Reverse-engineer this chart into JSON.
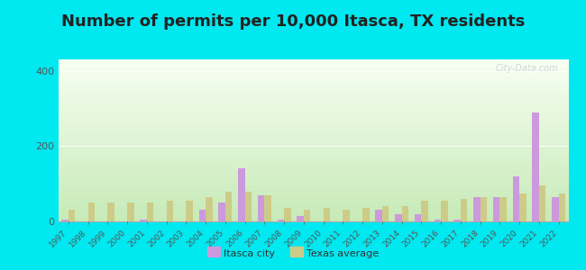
{
  "title": "Number of permits per 10,000 Itasca, TX residents",
  "years": [
    1997,
    1998,
    1999,
    2000,
    2001,
    2002,
    2003,
    2004,
    2005,
    2006,
    2007,
    2008,
    2009,
    2010,
    2011,
    2012,
    2013,
    2014,
    2015,
    2016,
    2017,
    2018,
    2019,
    2020,
    2021,
    2022
  ],
  "itasca": [
    5,
    0,
    0,
    0,
    5,
    0,
    0,
    30,
    50,
    140,
    70,
    5,
    15,
    0,
    0,
    0,
    30,
    20,
    20,
    5,
    5,
    65,
    65,
    120,
    290,
    65
  ],
  "texas": [
    30,
    50,
    50,
    50,
    50,
    55,
    55,
    65,
    80,
    80,
    70,
    35,
    30,
    35,
    30,
    35,
    40,
    40,
    55,
    55,
    60,
    65,
    65,
    75,
    95,
    75
  ],
  "itasca_color": "#cc99dd",
  "texas_color": "#cccc88",
  "background_outer": "#00e8f0",
  "ylim": [
    0,
    430
  ],
  "yticks": [
    0,
    200,
    400
  ],
  "title_fontsize": 13,
  "bar_width": 0.35,
  "watermark": "City-Data.com"
}
